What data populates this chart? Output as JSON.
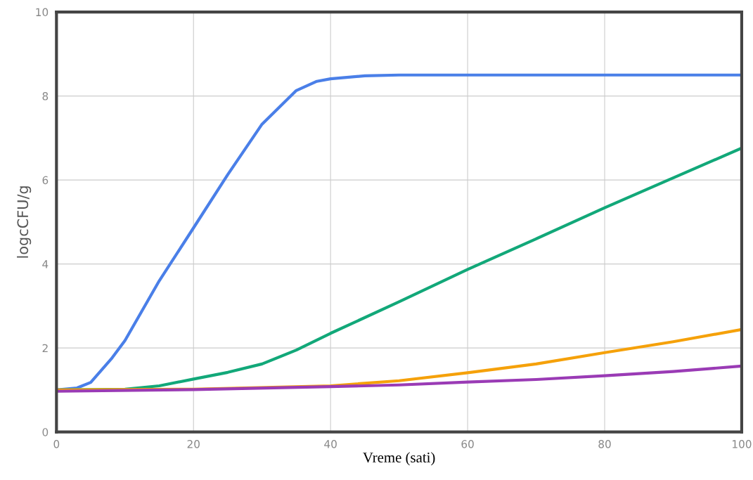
{
  "chart_data": {
    "type": "line",
    "xlabel": "Vreme (sati)",
    "ylabel": "logcCFU/g",
    "xlim": [
      0,
      100
    ],
    "ylim": [
      0,
      10
    ],
    "xticks": [
      0,
      20,
      40,
      60,
      80,
      100
    ],
    "yticks": [
      0,
      2,
      4,
      6,
      8,
      10
    ],
    "grid": true,
    "marker": "none",
    "line_style": "solid",
    "series": [
      {
        "color": "#4a7fe8",
        "x": [
          0,
          3,
          5,
          8,
          10,
          15,
          20,
          25,
          30,
          35,
          38,
          40,
          45,
          50,
          60,
          80,
          100
        ],
        "values": [
          1.0,
          1.05,
          1.18,
          1.74,
          2.18,
          3.6,
          4.86,
          6.13,
          7.33,
          8.13,
          8.35,
          8.41,
          8.48,
          8.5,
          8.5,
          8.5,
          8.5
        ]
      },
      {
        "color": "#12a879",
        "x": [
          0,
          10,
          15,
          20,
          25,
          30,
          35,
          40,
          50,
          60,
          70,
          80,
          90,
          100
        ],
        "values": [
          1.0,
          1.02,
          1.1,
          1.26,
          1.42,
          1.62,
          1.95,
          2.35,
          3.1,
          3.87,
          4.6,
          5.34,
          6.05,
          6.76
        ]
      },
      {
        "color": "#f5a10a",
        "x": [
          0,
          20,
          40,
          50,
          60,
          70,
          80,
          90,
          100
        ],
        "values": [
          1.0,
          1.02,
          1.1,
          1.22,
          1.41,
          1.62,
          1.89,
          2.15,
          2.44
        ]
      },
      {
        "color": "#9a3bb5",
        "x": [
          0,
          20,
          40,
          50,
          60,
          70,
          80,
          90,
          100
        ],
        "values": [
          0.97,
          1.01,
          1.08,
          1.12,
          1.19,
          1.25,
          1.34,
          1.44,
          1.57
        ]
      }
    ]
  }
}
